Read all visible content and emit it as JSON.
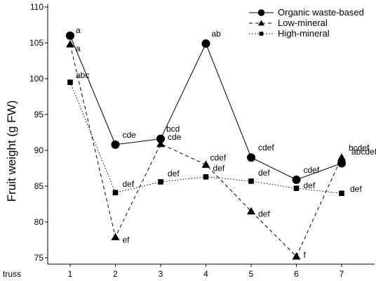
{
  "chart_data": {
    "type": "line",
    "ylabel": "Fruit weight (g FW)",
    "xlabel": "truss",
    "x": [
      1,
      2,
      3,
      4,
      5,
      6,
      7
    ],
    "ylim": [
      73,
      110
    ],
    "yticks": [
      75,
      80,
      85,
      90,
      95,
      100,
      105,
      110
    ],
    "legend_position": "top-right",
    "series": [
      {
        "name": "Organic waste-based",
        "marker": "circle",
        "line": "solid",
        "values": [
          106.0,
          90.8,
          91.6,
          104.9,
          89.0,
          85.9,
          88.2
        ],
        "labels": [
          "a",
          "cde",
          "bcd",
          "ab",
          "cdef",
          "cdef",
          "bcdef"
        ]
      },
      {
        "name": "Low-mineral",
        "marker": "triangle",
        "line": "dashed",
        "values": [
          104.8,
          77.9,
          90.9,
          88.0,
          81.5,
          75.2,
          89.0
        ],
        "labels": [
          "a",
          "ef",
          "cde",
          "cdef",
          "def",
          "f",
          "abcdef"
        ]
      },
      {
        "name": "High-mineral",
        "marker": "square",
        "line": "dotted",
        "values": [
          99.5,
          84.1,
          85.6,
          86.3,
          85.7,
          84.7,
          84.0
        ],
        "labels": [
          "abc",
          "def",
          "def",
          "def",
          "def",
          "def",
          "def"
        ]
      }
    ]
  }
}
